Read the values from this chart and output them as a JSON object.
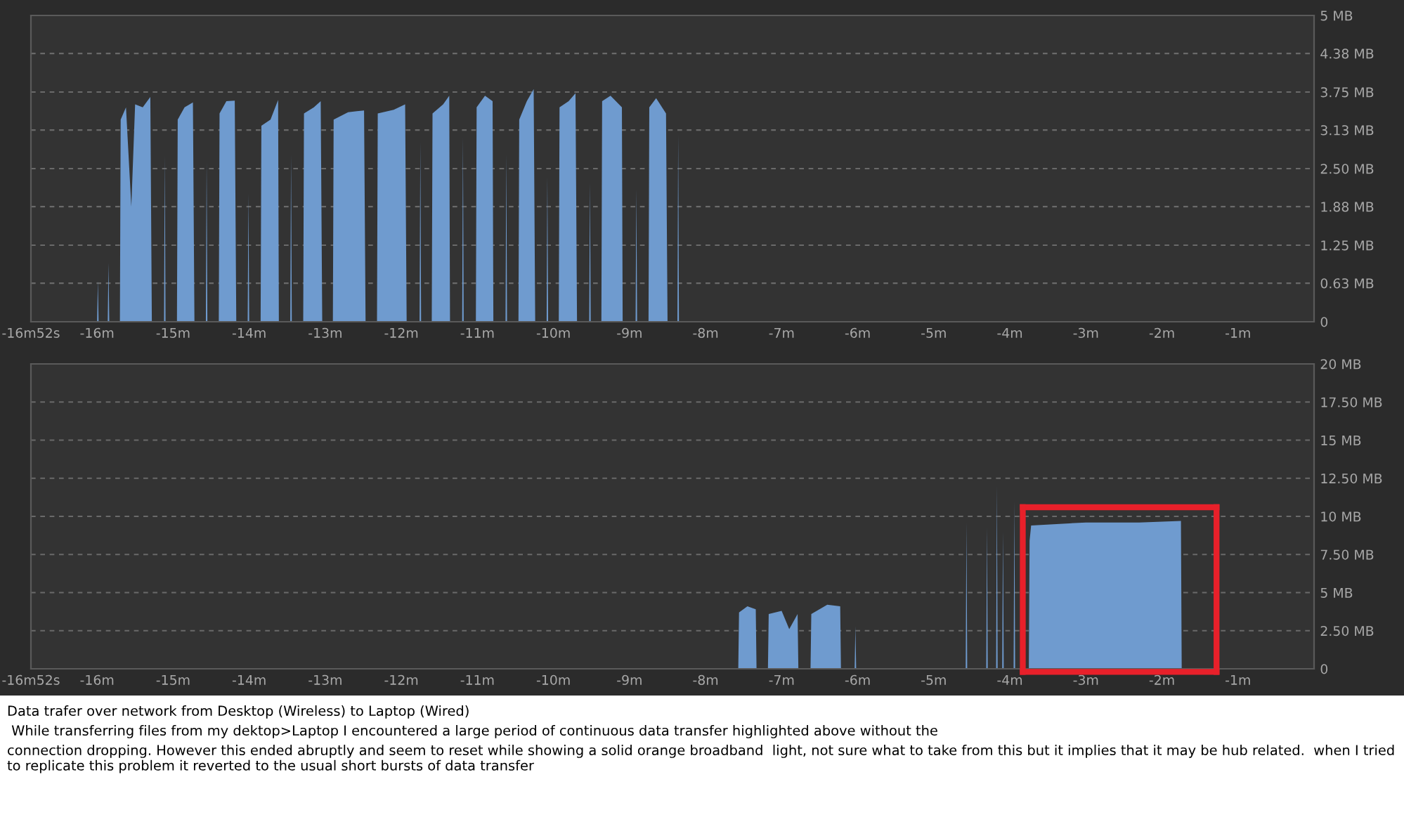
{
  "chart_data": [
    {
      "type": "area",
      "xlim": [
        -16.87,
        0
      ],
      "ylim": [
        0,
        5
      ],
      "grid": "y",
      "xticks": [
        {
          "value": -16.87,
          "label": "-16m52s"
        },
        {
          "value": -16,
          "label": "-16m"
        },
        {
          "value": -15,
          "label": "-15m"
        },
        {
          "value": -14,
          "label": "-14m"
        },
        {
          "value": -13,
          "label": "-13m"
        },
        {
          "value": -12,
          "label": "-12m"
        },
        {
          "value": -11,
          "label": "-11m"
        },
        {
          "value": -10,
          "label": "-10m"
        },
        {
          "value": -9,
          "label": "-9m"
        },
        {
          "value": -8,
          "label": "-8m"
        },
        {
          "value": -7,
          "label": "-7m"
        },
        {
          "value": -6,
          "label": "-6m"
        },
        {
          "value": -5,
          "label": "-5m"
        },
        {
          "value": -4,
          "label": "-4m"
        },
        {
          "value": -3,
          "label": "-3m"
        },
        {
          "value": -2,
          "label": "-2m"
        },
        {
          "value": -1,
          "label": "-1m"
        }
      ],
      "yticks": [
        0,
        {
          "value": 0.63,
          "label": "0.63 MB"
        },
        {
          "value": 1.25,
          "label": "1.25 MB"
        },
        {
          "value": 1.88,
          "label": "1.88 MB"
        },
        {
          "value": 2.5,
          "label": "2.50 MB"
        },
        {
          "value": 3.13,
          "label": "3.13 MB"
        },
        {
          "value": 3.75,
          "label": "3.75 MB"
        },
        {
          "value": 4.38,
          "label": "4.38 MB"
        },
        {
          "value": 5,
          "label": "5 MB"
        }
      ],
      "series": [
        {
          "color": "#6f9bcf",
          "x": [
            -16.87,
            -16.0,
            -15.99,
            -15.98,
            -15.86,
            -15.85,
            -15.84,
            -15.7,
            -15.69,
            -15.62,
            -15.55,
            -15.5,
            -15.4,
            -15.3,
            -15.28,
            -15.12,
            -15.11,
            -15.1,
            -14.95,
            -14.94,
            -14.85,
            -14.74,
            -14.72,
            -14.57,
            -14.56,
            -14.55,
            -14.4,
            -14.39,
            -14.3,
            -14.19,
            -14.17,
            -14.02,
            -14.01,
            -14.0,
            -13.85,
            -13.84,
            -13.72,
            -13.62,
            -13.61,
            -13.46,
            -13.45,
            -13.44,
            -13.29,
            -13.28,
            -13.15,
            -13.06,
            -13.04,
            -12.9,
            -12.89,
            -12.7,
            -12.49,
            -12.47,
            -12.32,
            -12.31,
            -12.1,
            -11.95,
            -11.93,
            -11.76,
            -11.75,
            -11.74,
            -11.6,
            -11.59,
            -11.45,
            -11.37,
            -11.36,
            -11.2,
            -11.19,
            -11.18,
            -11.02,
            -11.01,
            -10.9,
            -10.8,
            -10.79,
            -10.63,
            -10.62,
            -10.61,
            -10.46,
            -10.45,
            -10.35,
            -10.26,
            -10.24,
            -10.09,
            -10.08,
            -10.07,
            -9.93,
            -9.92,
            -9.8,
            -9.71,
            -9.69,
            -9.53,
            -9.52,
            -9.51,
            -9.37,
            -9.36,
            -9.25,
            -9.1,
            -9.09,
            -8.92,
            -8.91,
            -8.9,
            -8.75,
            -8.74,
            -8.65,
            -8.52,
            -8.5,
            -8.37,
            -8.36,
            -8.35,
            0
          ],
          "values": [
            0,
            0,
            0.67,
            0,
            0,
            0.96,
            0,
            0,
            3.3,
            3.5,
            1.88,
            3.55,
            3.5,
            3.67,
            0,
            0,
            2.71,
            0,
            0,
            3.3,
            3.5,
            3.58,
            0,
            0,
            2.61,
            0,
            0,
            3.4,
            3.6,
            3.61,
            0,
            0,
            2.09,
            0,
            0,
            3.2,
            3.3,
            3.62,
            0,
            0,
            2.73,
            0,
            0,
            3.4,
            3.5,
            3.6,
            0,
            0,
            3.3,
            3.42,
            3.45,
            0,
            0,
            3.4,
            3.46,
            3.55,
            0,
            0,
            2.94,
            0,
            0,
            3.4,
            3.55,
            3.69,
            0,
            0,
            3.02,
            0,
            0,
            3.5,
            3.69,
            3.6,
            0,
            0,
            2.73,
            0,
            0,
            3.3,
            3.6,
            3.8,
            0,
            0,
            2.36,
            0,
            0,
            3.5,
            3.6,
            3.73,
            0,
            0,
            2.27,
            0,
            0,
            3.6,
            3.69,
            3.5,
            0,
            0,
            2.16,
            0,
            0,
            3.5,
            3.65,
            3.4,
            0,
            0,
            3.06,
            0,
            0
          ]
        }
      ]
    },
    {
      "type": "area",
      "xlim": [
        -16.87,
        0
      ],
      "ylim": [
        0,
        20
      ],
      "grid": "y",
      "xticks": [
        {
          "value": -16.87,
          "label": "-16m52s"
        },
        {
          "value": -16,
          "label": "-16m"
        },
        {
          "value": -15,
          "label": "-15m"
        },
        {
          "value": -14,
          "label": "-14m"
        },
        {
          "value": -13,
          "label": "-13m"
        },
        {
          "value": -12,
          "label": "-12m"
        },
        {
          "value": -11,
          "label": "-11m"
        },
        {
          "value": -10,
          "label": "-10m"
        },
        {
          "value": -9,
          "label": "-9m"
        },
        {
          "value": -8,
          "label": "-8m"
        },
        {
          "value": -7,
          "label": "-7m"
        },
        {
          "value": -6,
          "label": "-6m"
        },
        {
          "value": -5,
          "label": "-5m"
        },
        {
          "value": -4,
          "label": "-4m"
        },
        {
          "value": -3,
          "label": "-3m"
        },
        {
          "value": -2,
          "label": "-2m"
        },
        {
          "value": -1,
          "label": "-1m"
        }
      ],
      "yticks": [
        0,
        {
          "value": 2.5,
          "label": "2.50 MB"
        },
        {
          "value": 5,
          "label": "5 MB"
        },
        {
          "value": 7.5,
          "label": "7.50 MB"
        },
        {
          "value": 10,
          "label": "10 MB"
        },
        {
          "value": 12.5,
          "label": "12.50 MB"
        },
        {
          "value": 15,
          "label": "15 MB"
        },
        {
          "value": 17.5,
          "label": "17.50 MB"
        },
        {
          "value": 20,
          "label": "20 MB"
        }
      ],
      "series": [
        {
          "color": "#6f9bcf",
          "x": [
            -16.87,
            -7.57,
            -7.56,
            -7.45,
            -7.34,
            -7.33,
            -7.18,
            -7.17,
            -7.0,
            -6.9,
            -6.79,
            -6.78,
            -6.62,
            -6.61,
            -6.4,
            -6.23,
            -6.22,
            -6.04,
            -6.03,
            -6.02,
            -4.58,
            -4.57,
            -4.56,
            -4.31,
            -4.3,
            -4.29,
            -4.18,
            -4.17,
            -4.16,
            -4.1,
            -4.09,
            -4.08,
            -3.95,
            -3.94,
            -3.93,
            -3.75,
            -3.74,
            -3.72,
            -3.0,
            -2.3,
            -1.75,
            -1.74,
            0
          ],
          "values": [
            0,
            0,
            3.7,
            4.1,
            3.9,
            0,
            0,
            3.6,
            3.8,
            2.6,
            3.6,
            0,
            0,
            3.6,
            4.2,
            4.1,
            0,
            0,
            2.8,
            0,
            0,
            9.6,
            0,
            0,
            9.3,
            0,
            0,
            12,
            0,
            0,
            9.0,
            0,
            0,
            11.0,
            0,
            0,
            8.4,
            9.4,
            9.6,
            9.6,
            9.7,
            0,
            0
          ]
        }
      ],
      "annotations": [
        "Data trafer over network from Desktop (Wireless) to Laptop (Wired)",
        " While transferring files from my dektop>Laptop I encountered a large period of continuous data transfer highlighted above without the",
        "connection dropping. However this ended abruptly and seem to reset while showing a solid orange broadband  light, not sure what to take from this but it implies that it may be hub related.  when I tried to replicate this problem it reverted to the usual short bursts of data transfer"
      ]
    }
  ]
}
